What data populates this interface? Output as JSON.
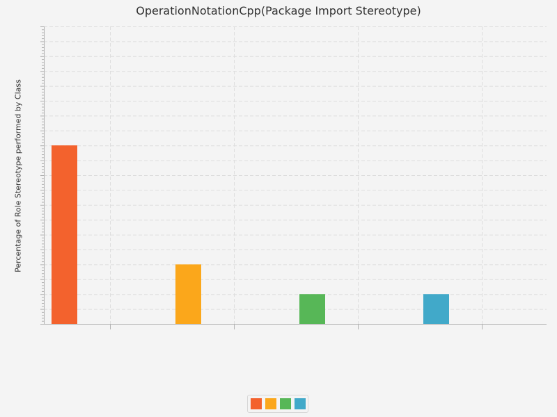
{
  "chart_data": {
    "type": "bar",
    "title": "OperationNotationCpp(Package Import Stereotype)",
    "xlabel": "",
    "ylabel": "Percentage of Role Stereotype performed by Class",
    "categories": [
      "",
      "",
      "",
      ""
    ],
    "series": [
      {
        "values": [
          60,
          0,
          0,
          0
        ],
        "color": "#f3622d"
      },
      {
        "values": [
          0,
          20,
          0,
          0
        ],
        "color": "#fba71b"
      },
      {
        "values": [
          0,
          0,
          10,
          0
        ],
        "color": "#57b757"
      },
      {
        "values": [
          0,
          0,
          0,
          10
        ],
        "color": "#41a9c9"
      }
    ],
    "ylim": [
      0,
      100
    ],
    "show_y_tick_labels": false,
    "grid": true,
    "legend_position": "bottom"
  }
}
